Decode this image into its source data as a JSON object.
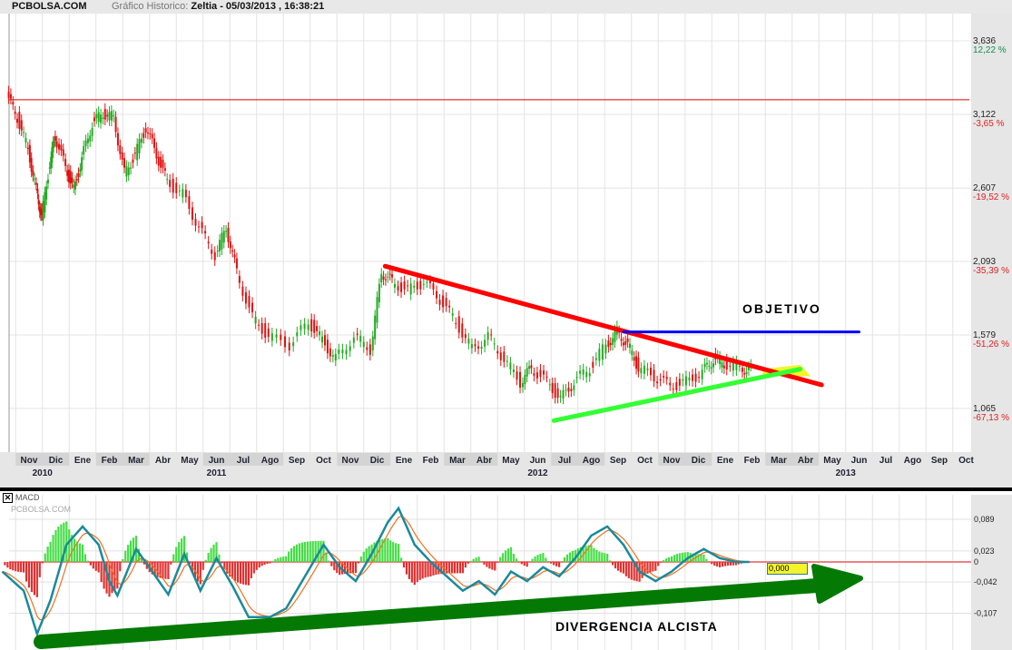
{
  "header": {
    "brand": "PCBOLSA.COM",
    "prefix": "Gráfico Historico:",
    "title": "Zeltia - 05/03/2013 , 16:38:21"
  },
  "chart_data": [
    {
      "type": "candlestick",
      "title": "Zeltia",
      "ylim": [
        0.9,
        3.85
      ],
      "y_ticks": [
        {
          "price": "3,636",
          "pct": "12,22 %",
          "v": 3.636
        },
        {
          "price": "3,122",
          "pct": "-3,65 %",
          "v": 3.122
        },
        {
          "price": "2,607",
          "pct": "-19,52 %",
          "v": 2.607
        },
        {
          "price": "2,093",
          "pct": "-35,39 %",
          "v": 2.093
        },
        {
          "price": "1,579",
          "pct": "-51,26 %",
          "v": 1.579
        },
        {
          "price": "1,065",
          "pct": "-67,13 %",
          "v": 1.065
        }
      ],
      "months": [
        "Nov",
        "Dic",
        "Ene",
        "Feb",
        "Mar",
        "Abr",
        "May",
        "Jun",
        "Jul",
        "Ago",
        "Sep",
        "Oct",
        "Nov",
        "Dic",
        "Ene",
        "Feb",
        "Mar",
        "Abr",
        "May",
        "Jun",
        "Jul",
        "Ago",
        "Sep",
        "Oct",
        "Nov",
        "Dic",
        "Ene",
        "Feb",
        "Mar",
        "Abr",
        "May",
        "Jun",
        "Jul",
        "Ago",
        "Sep",
        "Oct"
      ],
      "years": [
        {
          "label": "2010",
          "m": 1.5
        },
        {
          "label": "2011",
          "m": 8
        },
        {
          "label": "2012",
          "m": 20
        },
        {
          "label": "2013",
          "m": 31.5
        }
      ],
      "x_unit": "months since Oct 2010",
      "price": [
        [
          0.2,
          3.255
        ],
        [
          0.6,
          3.1
        ],
        [
          1.0,
          2.874
        ],
        [
          1.3,
          2.59
        ],
        [
          1.5,
          2.4
        ],
        [
          1.8,
          2.78
        ],
        [
          2.0,
          2.97
        ],
        [
          2.4,
          2.75
        ],
        [
          2.7,
          2.59
        ],
        [
          3.0,
          2.81
        ],
        [
          3.4,
          3.06
        ],
        [
          3.8,
          3.13
        ],
        [
          4.2,
          3.1
        ],
        [
          4.6,
          2.71
        ],
        [
          5.0,
          2.84
        ],
        [
          5.4,
          3.03
        ],
        [
          5.8,
          2.84
        ],
        [
          6.2,
          2.65
        ],
        [
          6.8,
          2.56
        ],
        [
          7.4,
          2.33
        ],
        [
          8.0,
          2.14
        ],
        [
          8.4,
          2.33
        ],
        [
          8.8,
          2.02
        ],
        [
          9.4,
          1.7
        ],
        [
          10.0,
          1.57
        ],
        [
          10.8,
          1.51
        ],
        [
          11.5,
          1.67
        ],
        [
          12.0,
          1.54
        ],
        [
          12.5,
          1.41
        ],
        [
          13.2,
          1.57
        ],
        [
          13.8,
          1.48
        ],
        [
          14.2,
          2.02
        ],
        [
          14.6,
          1.95
        ],
        [
          15.2,
          1.89
        ],
        [
          15.8,
          1.95
        ],
        [
          16.4,
          1.83
        ],
        [
          17.0,
          1.67
        ],
        [
          17.6,
          1.48
        ],
        [
          18.2,
          1.57
        ],
        [
          18.8,
          1.41
        ],
        [
          19.4,
          1.25
        ],
        [
          19.8,
          1.35
        ],
        [
          20.4,
          1.25
        ],
        [
          20.9,
          1.13
        ],
        [
          21.4,
          1.25
        ],
        [
          22.0,
          1.35
        ],
        [
          22.6,
          1.51
        ],
        [
          23.0,
          1.6
        ],
        [
          23.4,
          1.51
        ],
        [
          23.8,
          1.35
        ],
        [
          24.4,
          1.29
        ],
        [
          25.0,
          1.22
        ],
        [
          25.6,
          1.25
        ],
        [
          26.2,
          1.32
        ],
        [
          26.6,
          1.41
        ],
        [
          27.0,
          1.38
        ],
        [
          27.6,
          1.35
        ],
        [
          28.0,
          1.33
        ]
      ],
      "resistance_level": 3.224,
      "trendlines": [
        {
          "color": "#ff0000",
          "from": [
            14.3,
            2.06
          ],
          "to": [
            30.6,
            1.23
          ]
        },
        {
          "color": "#33ff33",
          "from": [
            20.6,
            0.98
          ],
          "to": [
            29.8,
            1.34
          ]
        },
        {
          "color": "#0000ff",
          "from": [
            23.2,
            1.6
          ],
          "to": [
            32,
            1.6
          ]
        }
      ],
      "annotations": {
        "objective": "OBJETIVO"
      }
    },
    {
      "type": "line",
      "title": "MACD",
      "watermark": "PCBOLSA.COM",
      "ylim": [
        -0.18,
        0.1
      ],
      "y_ticks": [
        {
          "label": "0,089",
          "v": 0.089
        },
        {
          "label": "0,023",
          "v": 0.023
        },
        {
          "label": "0",
          "v": 0
        },
        {
          "label": "-0,042",
          "v": -0.042
        },
        {
          "label": "-0,107",
          "v": -0.107
        }
      ],
      "current_value": "0,000",
      "macd": [
        [
          0,
          -0.02
        ],
        [
          0.8,
          -0.06
        ],
        [
          1.3,
          -0.15
        ],
        [
          1.8,
          -0.08
        ],
        [
          2.4,
          0.036
        ],
        [
          3.0,
          0.074
        ],
        [
          3.6,
          0.036
        ],
        [
          4.0,
          -0.04
        ],
        [
          4.3,
          -0.07
        ],
        [
          5.0,
          0.027
        ],
        [
          5.6,
          -0.02
        ],
        [
          6.2,
          -0.068
        ],
        [
          6.8,
          0.017
        ],
        [
          7.4,
          -0.06
        ],
        [
          8.0,
          0.008
        ],
        [
          8.6,
          -0.05
        ],
        [
          9.2,
          -0.115
        ],
        [
          10.0,
          -0.115
        ],
        [
          10.6,
          -0.097
        ],
        [
          11.2,
          -0.04
        ],
        [
          12.0,
          0.036
        ],
        [
          12.6,
          -0.011
        ],
        [
          13.2,
          -0.04
        ],
        [
          13.8,
          0.017
        ],
        [
          14.4,
          0.083
        ],
        [
          14.8,
          0.112
        ],
        [
          15.4,
          0.036
        ],
        [
          16.0,
          0
        ],
        [
          16.6,
          -0.03
        ],
        [
          17.2,
          -0.06
        ],
        [
          17.8,
          -0.04
        ],
        [
          18.4,
          -0.068
        ],
        [
          19.0,
          -0.02
        ],
        [
          19.6,
          -0.04
        ],
        [
          20.2,
          -0.011
        ],
        [
          20.8,
          -0.03
        ],
        [
          21.4,
          0.008
        ],
        [
          22.0,
          0.055
        ],
        [
          22.6,
          0.074
        ],
        [
          23.2,
          0.036
        ],
        [
          23.8,
          -0.02
        ],
        [
          24.4,
          -0.04
        ],
        [
          25.0,
          -0.02
        ],
        [
          25.6,
          0.008
        ],
        [
          26.2,
          0.027
        ],
        [
          26.8,
          0.008
        ],
        [
          27.4,
          0
        ],
        [
          28.0,
          0
        ]
      ],
      "annotations": {
        "divergence": "DIVERGENCIA ALCISTA"
      }
    }
  ]
}
